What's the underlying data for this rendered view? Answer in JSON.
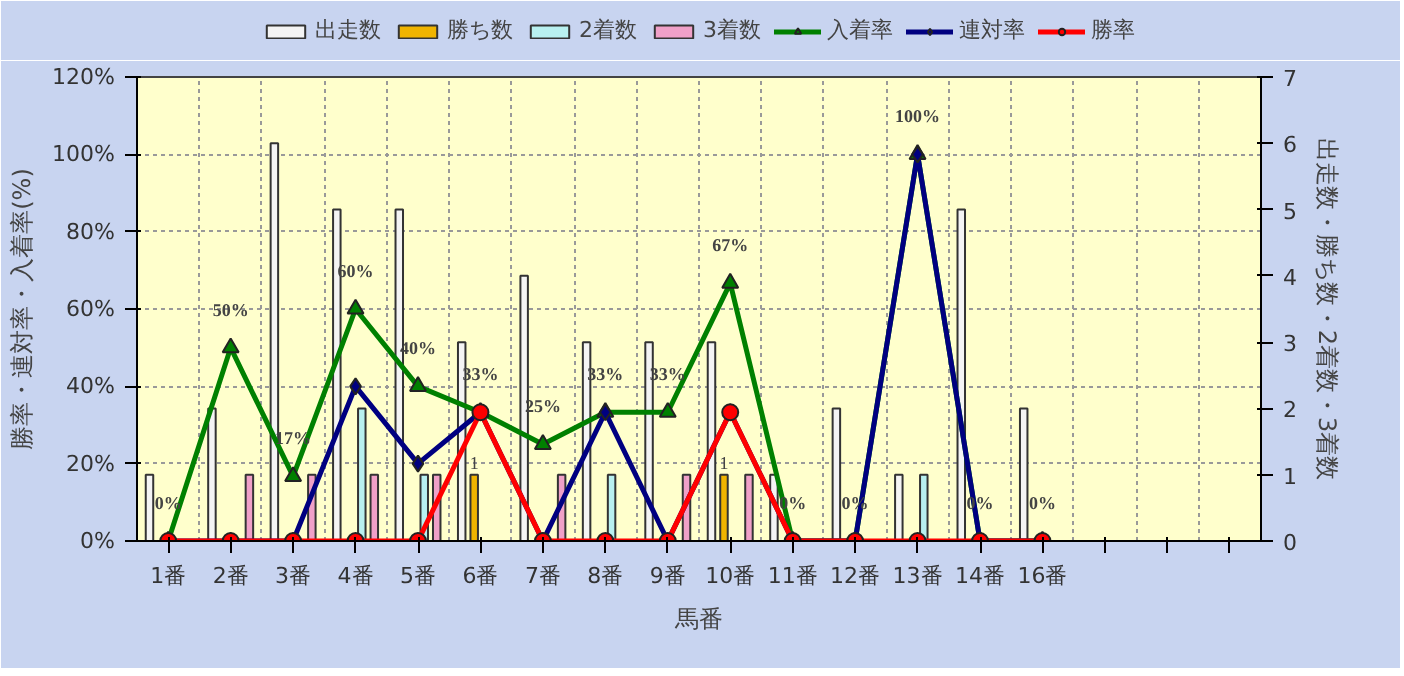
{
  "chart_data": {
    "type": "bar",
    "xlabel": "馬番",
    "ylabel": "勝率・連対率・入着率(%)",
    "y2label": "出走数・勝ち数・2着数・3着数",
    "categories": [
      "1番",
      "2番",
      "3番",
      "4番",
      "5番",
      "6番",
      "7番",
      "8番",
      "9番",
      "10番",
      "11番",
      "12番",
      "13番",
      "14番",
      "16番",
      null,
      null,
      null
    ],
    "series": [
      {
        "name": "出走数",
        "axis": "y2",
        "color": "#f4f4f4",
        "values": [
          1,
          2,
          6,
          5,
          5,
          3,
          4,
          3,
          3,
          3,
          1,
          2,
          1,
          5,
          2,
          null,
          null,
          null
        ]
      },
      {
        "name": "勝ち数",
        "axis": "y2",
        "color": "#f0b400",
        "values": [
          0,
          0,
          0,
          0,
          0,
          1,
          0,
          0,
          0,
          1,
          0,
          0,
          0,
          0,
          0,
          null,
          null,
          null
        ],
        "value_labels": [
          null,
          null,
          null,
          null,
          null,
          "1",
          null,
          null,
          null,
          "1",
          null,
          null,
          null,
          null,
          null,
          null,
          null,
          null
        ]
      },
      {
        "name": "2着数",
        "axis": "y2",
        "color": "#b8f0f0",
        "values": [
          0,
          0,
          0,
          2,
          1,
          0,
          0,
          1,
          0,
          0,
          0,
          0,
          1,
          0,
          0,
          null,
          null,
          null
        ]
      },
      {
        "name": "3着数",
        "axis": "y2",
        "color": "#f0a0c8",
        "values": [
          0,
          1,
          1,
          1,
          1,
          0,
          1,
          0,
          1,
          1,
          0,
          0,
          0,
          0,
          0,
          null,
          null,
          null
        ]
      },
      {
        "name": "入着率",
        "type": "line",
        "axis": "y",
        "color": "#008000",
        "marker": "triangle",
        "values": [
          0,
          50,
          16.7,
          60,
          40,
          33.3,
          25,
          33.3,
          33.3,
          66.7,
          0,
          0,
          100,
          0,
          0,
          null,
          null,
          null
        ],
        "value_labels": [
          "0%",
          "50%",
          "17%",
          "60%",
          "40%",
          "33%",
          "25%",
          "33%",
          "33%",
          "67%",
          "0%",
          "0%",
          "100%",
          "0%",
          "0%",
          null,
          null,
          null
        ]
      },
      {
        "name": "連対率",
        "type": "line",
        "axis": "y",
        "color": "#000080",
        "marker": "diamond",
        "values": [
          0,
          0,
          0,
          40,
          20,
          33.3,
          0,
          33.3,
          0,
          33.3,
          0,
          0,
          100,
          0,
          0,
          null,
          null,
          null
        ]
      },
      {
        "name": "勝率",
        "type": "line",
        "axis": "y",
        "color": "#ff0000",
        "marker": "circle",
        "values": [
          0,
          0,
          0,
          0,
          0,
          33.3,
          0,
          0,
          0,
          33.3,
          0,
          0,
          0,
          0,
          0,
          null,
          null,
          null
        ]
      }
    ],
    "ylim": [
      0,
      120
    ],
    "yticks": [
      {
        "value": 0,
        "label": "0%"
      },
      {
        "value": 20,
        "label": "20%"
      },
      {
        "value": 40,
        "label": "40%"
      },
      {
        "value": 60,
        "label": "60%"
      },
      {
        "value": 80,
        "label": "80%"
      },
      {
        "value": 100,
        "label": "100%"
      },
      {
        "value": 120,
        "label": "120%"
      }
    ],
    "y2lim": [
      0,
      7
    ],
    "y2ticks": [
      0,
      1,
      2,
      3,
      4,
      5,
      6,
      7
    ],
    "grid": true,
    "legend": "top"
  }
}
